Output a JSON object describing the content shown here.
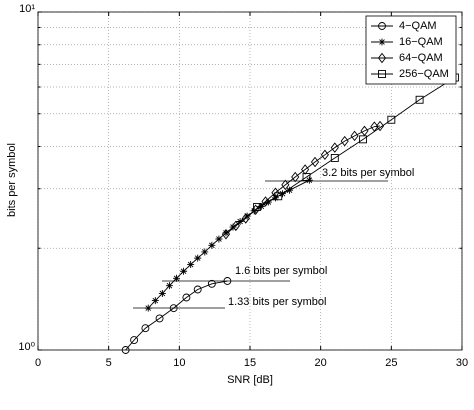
{
  "chart_data": {
    "type": "line",
    "x_label": "SNR [dB]",
    "y_label": "bits per symbol",
    "xlim": [
      0,
      30
    ],
    "xticks": [
      0,
      5,
      10,
      15,
      20,
      25,
      30
    ],
    "ylim": [
      1,
      10
    ],
    "y_log": true,
    "yticks": [
      {
        "value": 1,
        "label": "10⁰"
      },
      {
        "value": 10,
        "label": "10¹"
      }
    ],
    "yminorticks": [
      2,
      3,
      4,
      5,
      6,
      7,
      8,
      9
    ],
    "grid": true,
    "legend": "upper right",
    "series": [
      {
        "name": "4−QAM",
        "color": "#000000",
        "marker": "circle",
        "x": [
          6.2,
          6.8,
          7.6,
          8.6,
          9.6,
          10.5,
          11.3,
          12.3,
          13.4
        ],
        "values": [
          1.0,
          1.07,
          1.16,
          1.24,
          1.33,
          1.43,
          1.51,
          1.57,
          1.6
        ]
      },
      {
        "name": "16−QAM",
        "color": "#000000",
        "marker": "star",
        "x": [
          7.8,
          8.3,
          8.8,
          9.3,
          9.8,
          10.3,
          10.8,
          11.3,
          11.8,
          12.3,
          12.8,
          13.3,
          13.8,
          14.3,
          14.8,
          15.3,
          15.8,
          16.3,
          16.8,
          17.3,
          17.8,
          19.2
        ],
        "values": [
          1.33,
          1.4,
          1.47,
          1.55,
          1.63,
          1.71,
          1.79,
          1.87,
          1.95,
          2.04,
          2.13,
          2.22,
          2.31,
          2.4,
          2.49,
          2.58,
          2.66,
          2.74,
          2.82,
          2.9,
          2.97,
          3.18
        ]
      },
      {
        "name": "64−QAM",
        "color": "#000000",
        "marker": "diamond",
        "x": [
          13.3,
          14.0,
          14.7,
          15.4,
          16.1,
          16.8,
          17.5,
          18.2,
          18.9,
          19.6,
          20.3,
          21.0,
          21.7,
          22.4,
          23.1,
          23.8,
          24.2
        ],
        "values": [
          2.2,
          2.33,
          2.45,
          2.6,
          2.75,
          2.92,
          3.08,
          3.25,
          3.42,
          3.6,
          3.78,
          3.97,
          4.15,
          4.3,
          4.45,
          4.58,
          4.6
        ]
      },
      {
        "name": "256−QAM",
        "color": "#000000",
        "marker": "square",
        "x": [
          15.5,
          17.0,
          19.0,
          21.0,
          23.0,
          25.0,
          27.0,
          29.5
        ],
        "values": [
          2.65,
          2.85,
          3.25,
          3.7,
          4.2,
          4.8,
          5.5,
          6.4
        ]
      }
    ],
    "annotations": [
      "3.2 bits per symbol",
      "1.6 bits per symbol",
      "1.33 bits per symbol"
    ]
  }
}
